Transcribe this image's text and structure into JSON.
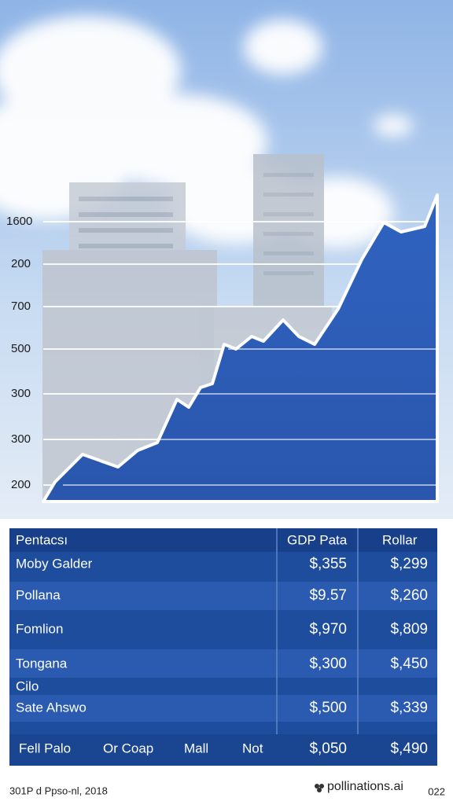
{
  "axis_labels": [
    "1600",
    "200",
    "700",
    "500",
    "300",
    "300",
    "200"
  ],
  "table": {
    "header": [
      "Pentacsı",
      "GDP Pata",
      "Rollar"
    ],
    "rows": [
      [
        "Moby Galder",
        "$,355",
        "$,299"
      ],
      [
        "Pollana",
        "$9.57",
        "$,260"
      ],
      [
        "Fomlion",
        "$,970",
        "$,809"
      ],
      [
        "Tongana",
        "$,300",
        "$,450"
      ],
      [
        "Cilo"
      ],
      [
        "Sate Ahswo",
        "$,500",
        "$,339"
      ]
    ],
    "footer_row": [
      "Fell Palo",
      "Or Coap",
      "Mall",
      "Not",
      "$,050",
      "$,490"
    ]
  },
  "footer": {
    "source": "301P d Ppso-nl, 2018",
    "brand": "pollinations.ai",
    "right": "022"
  }
}
